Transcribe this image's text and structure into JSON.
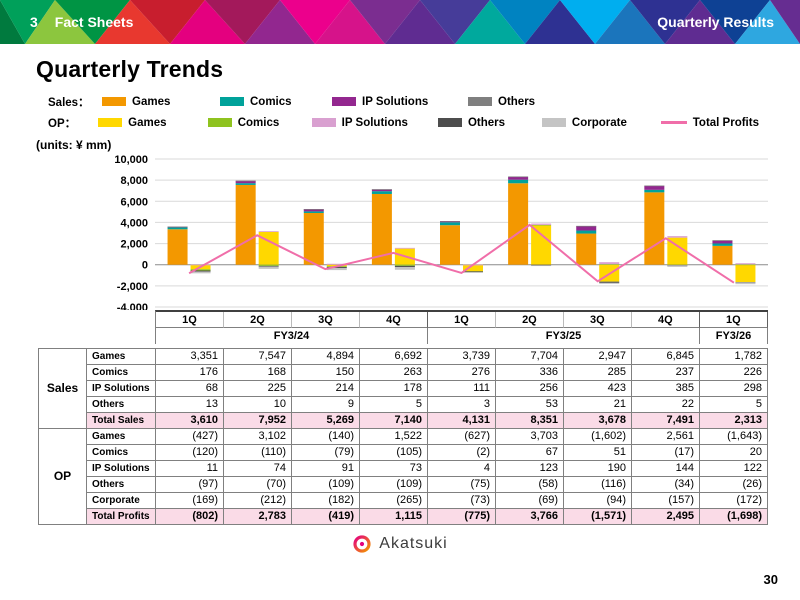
{
  "header": {
    "section_number": "3",
    "section_title": "Fact Sheets",
    "right_title": "Quarterly Results"
  },
  "page": {
    "title": "Quarterly Trends",
    "units_label": "(units: ¥ mm)",
    "brand": "Akatsuki",
    "page_number": "30"
  },
  "legend": {
    "sales_label": "Sales：",
    "op_label": "OP：",
    "sales_items": [
      {
        "label": "Games",
        "color": "#F39800"
      },
      {
        "label": "Comics",
        "color": "#00A29A"
      },
      {
        "label": "IP Solutions",
        "color": "#93278F"
      },
      {
        "label": "Others",
        "color": "#7F7F7F"
      }
    ],
    "op_items": [
      {
        "label": "Games",
        "color": "#FFD800"
      },
      {
        "label": "Comics",
        "color": "#8FC31F"
      },
      {
        "label": "IP Solutions",
        "color": "#D9A0D0"
      },
      {
        "label": "Others",
        "color": "#4D4D4D"
      },
      {
        "label": "Corporate",
        "color": "#C4C4C4"
      }
    ],
    "line_item": {
      "label": "Total Profits",
      "color": "#F06EA9"
    }
  },
  "chart_data": {
    "type": "bar",
    "title": "Quarterly Trends",
    "ylabel": "¥ mm",
    "ylim": [
      -4000,
      10000
    ],
    "ytick_step": 2000,
    "grid": true,
    "categories": [
      "1Q",
      "2Q",
      "3Q",
      "4Q",
      "1Q",
      "2Q",
      "3Q",
      "4Q",
      "1Q"
    ],
    "groups": [
      {
        "label": "FY3/24",
        "span": 4
      },
      {
        "label": "FY3/25",
        "span": 4
      },
      {
        "label": "FY3/26",
        "span": 1
      }
    ],
    "sales_series": [
      {
        "name": "Games",
        "color": "#F39800",
        "values": [
          3351,
          7547,
          4894,
          6692,
          3739,
          7704,
          2947,
          6845,
          1782
        ]
      },
      {
        "name": "Comics",
        "color": "#00A29A",
        "values": [
          176,
          168,
          150,
          263,
          276,
          336,
          285,
          237,
          226
        ]
      },
      {
        "name": "IP Solutions",
        "color": "#93278F",
        "values": [
          68,
          225,
          214,
          178,
          111,
          256,
          423,
          385,
          298
        ]
      },
      {
        "name": "Others",
        "color": "#7F7F7F",
        "values": [
          13,
          10,
          9,
          5,
          3,
          53,
          21,
          22,
          5
        ]
      }
    ],
    "op_series": [
      {
        "name": "Games",
        "color": "#FFD800",
        "values": [
          -427,
          3102,
          -140,
          1522,
          -627,
          3703,
          -1602,
          2561,
          -1643
        ]
      },
      {
        "name": "Comics",
        "color": "#8FC31F",
        "values": [
          -120,
          -110,
          -79,
          -105,
          -2,
          67,
          51,
          -17,
          20
        ]
      },
      {
        "name": "IP Solutions",
        "color": "#D9A0D0",
        "values": [
          11,
          74,
          91,
          73,
          4,
          123,
          190,
          144,
          122
        ]
      },
      {
        "name": "Others",
        "color": "#4D4D4D",
        "values": [
          -97,
          -70,
          -109,
          -109,
          -75,
          -58,
          -116,
          -34,
          -26
        ]
      },
      {
        "name": "Corporate",
        "color": "#C4C4C4",
        "values": [
          -169,
          -212,
          -182,
          -265,
          -73,
          -69,
          -94,
          -157,
          -172
        ]
      }
    ],
    "line_series": {
      "name": "Total Profits",
      "color": "#F06EA9",
      "values": [
        -802,
        2783,
        -419,
        1115,
        -775,
        3766,
        -1571,
        2495,
        -1698
      ]
    }
  },
  "table": {
    "groups": [
      {
        "label": "Sales",
        "rows": [
          {
            "label": "Games",
            "values": [
              "3,351",
              "7,547",
              "4,894",
              "6,692",
              "3,739",
              "7,704",
              "2,947",
              "6,845",
              "1,782"
            ]
          },
          {
            "label": "Comics",
            "values": [
              "176",
              "168",
              "150",
              "263",
              "276",
              "336",
              "285",
              "237",
              "226"
            ]
          },
          {
            "label": "IP Solutions",
            "values": [
              "68",
              "225",
              "214",
              "178",
              "111",
              "256",
              "423",
              "385",
              "298"
            ]
          },
          {
            "label": "Others",
            "values": [
              "13",
              "10",
              "9",
              "5",
              "3",
              "53",
              "21",
              "22",
              "5"
            ]
          },
          {
            "label": "Total Sales",
            "total": true,
            "values": [
              "3,610",
              "7,952",
              "5,269",
              "7,140",
              "4,131",
              "8,351",
              "3,678",
              "7,491",
              "2,313"
            ]
          }
        ]
      },
      {
        "label": "OP",
        "rows": [
          {
            "label": "Games",
            "values": [
              "(427)",
              "3,102",
              "(140)",
              "1,522",
              "(627)",
              "3,703",
              "(1,602)",
              "2,561",
              "(1,643)"
            ]
          },
          {
            "label": "Comics",
            "values": [
              "(120)",
              "(110)",
              "(79)",
              "(105)",
              "(2)",
              "67",
              "51",
              "(17)",
              "20"
            ]
          },
          {
            "label": "IP Solutions",
            "values": [
              "11",
              "74",
              "91",
              "73",
              "4",
              "123",
              "190",
              "144",
              "122"
            ]
          },
          {
            "label": "Others",
            "values": [
              "(97)",
              "(70)",
              "(109)",
              "(109)",
              "(75)",
              "(58)",
              "(116)",
              "(34)",
              "(26)"
            ]
          },
          {
            "label": "Corporate",
            "values": [
              "(169)",
              "(212)",
              "(182)",
              "(265)",
              "(73)",
              "(69)",
              "(94)",
              "(157)",
              "(172)"
            ]
          },
          {
            "label": "Total Profits",
            "total": true,
            "values": [
              "(802)",
              "2,783",
              "(419)",
              "1,115",
              "(775)",
              "3,766",
              "(1,571)",
              "2,495",
              "(1,698)"
            ]
          }
        ]
      }
    ]
  }
}
